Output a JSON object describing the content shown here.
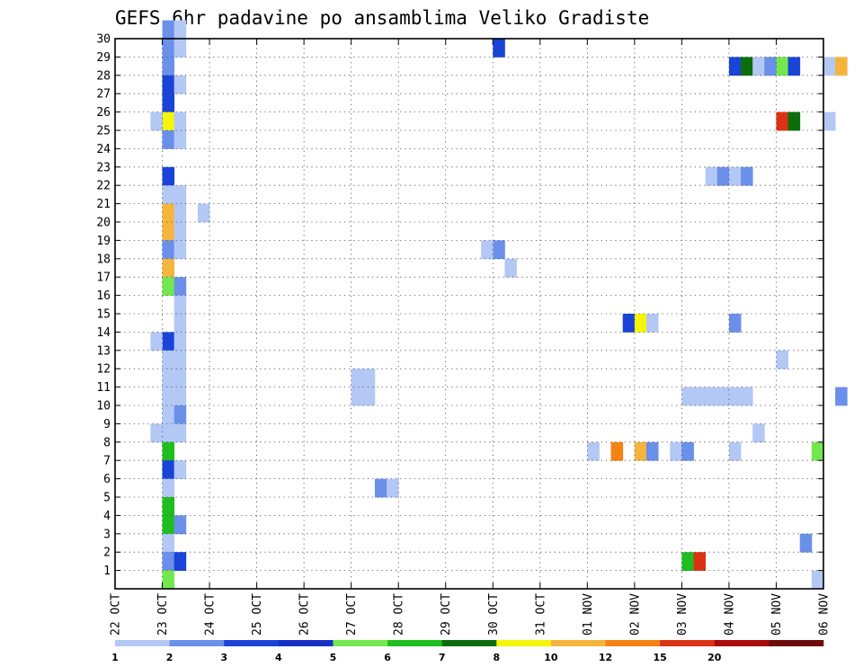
{
  "chart_data": {
    "type": "heatmap",
    "title": "GEFS 6hr padavine po ansamblima Veliko Gradiste",
    "xlabel": "",
    "ylabel": "",
    "x_ticks": [
      "22 OCT",
      "23 OCT",
      "24 OCT",
      "25 OCT",
      "26 OCT",
      "27 OCT",
      "28 OCT",
      "29 OCT",
      "30 OCT",
      "31 OCT",
      "01 NOV",
      "02 NOV",
      "03 NOV",
      "04 NOV",
      "05 NOV",
      "06 NOV"
    ],
    "xlim_days": [
      0,
      15
    ],
    "y_ticks": [
      "1",
      "2",
      "3",
      "4",
      "5",
      "6",
      "7",
      "8",
      "9",
      "10",
      "11",
      "12",
      "13",
      "14",
      "15",
      "16",
      "17",
      "18",
      "19",
      "20",
      "21",
      "22",
      "23",
      "24",
      "25",
      "26",
      "27",
      "28",
      "29",
      "30"
    ],
    "ylim": [
      0,
      30
    ],
    "grid": true,
    "colorbar": {
      "levels": [
        "1",
        "2",
        "3",
        "4",
        "5",
        "6",
        "7",
        "8",
        "10",
        "12",
        "15",
        "20"
      ],
      "colors": [
        "#b4c8f5",
        "#6a90ea",
        "#1a44d8",
        "#1730c8",
        "#73e84e",
        "#1fbe1f",
        "#0b6e0b",
        "#f5f50a",
        "#f5b43c",
        "#f58214",
        "#dc3214",
        "#aa0a0a",
        "#6e0a0a"
      ]
    },
    "cells": [
      [
        1,
        0,
        30,
        1
      ],
      [
        1,
        1,
        30,
        0
      ],
      [
        1,
        0,
        29,
        1
      ],
      [
        1,
        1,
        29,
        0
      ],
      [
        1,
        0,
        28,
        1
      ],
      [
        1,
        0,
        27,
        2
      ],
      [
        1,
        1,
        27,
        0
      ],
      [
        1,
        0,
        26,
        2
      ],
      [
        1,
        0,
        25,
        7
      ],
      [
        1,
        1,
        25,
        0
      ],
      [
        0,
        3,
        25,
        0
      ],
      [
        1,
        0,
        24,
        1
      ],
      [
        1,
        1,
        24,
        0
      ],
      [
        1,
        0,
        22,
        2
      ],
      [
        1,
        0,
        21,
        0
      ],
      [
        1,
        1,
        21,
        0
      ],
      [
        1,
        0,
        20,
        8
      ],
      [
        1,
        1,
        20,
        0
      ],
      [
        0,
        7,
        20,
        0
      ],
      [
        1,
        0,
        19,
        8
      ],
      [
        1,
        1,
        19,
        0
      ],
      [
        1,
        0,
        18,
        1
      ],
      [
        1,
        1,
        18,
        0
      ],
      [
        1,
        0,
        17,
        8
      ],
      [
        1,
        0,
        16,
        4
      ],
      [
        1,
        1,
        16,
        1
      ],
      [
        1,
        1,
        15,
        0
      ],
      [
        1,
        1,
        14,
        0
      ],
      [
        1,
        0,
        13,
        2
      ],
      [
        1,
        1,
        13,
        0
      ],
      [
        0,
        3,
        13,
        0
      ],
      [
        1,
        0,
        12,
        0
      ],
      [
        1,
        1,
        12,
        0
      ],
      [
        1,
        0,
        11,
        0
      ],
      [
        1,
        1,
        11,
        0
      ],
      [
        1,
        0,
        10,
        0
      ],
      [
        1,
        1,
        10,
        0
      ],
      [
        1,
        0,
        9,
        0
      ],
      [
        1,
        1,
        9,
        1
      ],
      [
        1,
        0,
        8,
        0
      ],
      [
        1,
        1,
        8,
        0
      ],
      [
        0,
        3,
        8,
        0
      ],
      [
        1,
        0,
        7,
        5
      ],
      [
        1,
        0,
        6,
        2
      ],
      [
        1,
        1,
        6,
        0
      ],
      [
        1,
        0,
        5,
        0
      ],
      [
        1,
        0,
        4,
        5
      ],
      [
        1,
        0,
        3,
        5
      ],
      [
        1,
        1,
        3,
        1
      ],
      [
        1,
        0,
        2,
        0
      ],
      [
        1,
        0,
        1,
        1
      ],
      [
        1,
        1,
        1,
        2
      ],
      [
        1,
        0,
        0,
        4
      ],
      [
        8,
        0,
        29,
        2
      ],
      [
        8,
        0,
        18,
        1
      ],
      [
        7,
        3,
        18,
        0
      ],
      [
        8,
        1,
        17,
        0
      ],
      [
        5,
        0,
        11,
        0
      ],
      [
        5,
        1,
        11,
        0
      ],
      [
        5,
        0,
        10,
        0
      ],
      [
        5,
        1,
        10,
        0
      ],
      [
        5,
        2,
        5,
        1
      ],
      [
        5,
        3,
        5,
        0
      ],
      [
        10,
        3,
        14,
        2
      ],
      [
        11,
        0,
        14,
        7
      ],
      [
        11,
        1,
        14,
        0
      ],
      [
        10,
        0,
        7,
        0
      ],
      [
        10,
        2,
        7,
        9
      ],
      [
        11,
        0,
        7,
        8
      ],
      [
        11,
        1,
        7,
        1
      ],
      [
        11,
        3,
        7,
        0
      ],
      [
        12,
        0,
        7,
        1
      ],
      [
        12,
        2,
        22,
        0
      ],
      [
        12,
        3,
        22,
        1
      ],
      [
        13,
        0,
        22,
        0
      ],
      [
        13,
        1,
        22,
        1
      ],
      [
        13,
        0,
        28,
        2
      ],
      [
        13,
        1,
        28,
        6
      ],
      [
        13,
        2,
        28,
        0
      ],
      [
        13,
        3,
        28,
        1
      ],
      [
        14,
        0,
        28,
        4
      ],
      [
        14,
        1,
        28,
        2
      ],
      [
        15,
        0,
        28,
        0
      ],
      [
        15,
        1,
        28,
        8
      ],
      [
        14,
        0,
        25,
        10
      ],
      [
        14,
        1,
        25,
        6
      ],
      [
        15,
        0,
        25,
        0
      ],
      [
        13,
        0,
        14,
        1
      ],
      [
        14,
        0,
        12,
        0
      ],
      [
        15,
        1,
        10,
        1
      ],
      [
        12,
        0,
        10,
        0
      ],
      [
        12,
        1,
        10,
        0
      ],
      [
        12,
        2,
        10,
        0
      ],
      [
        12,
        3,
        10,
        0
      ],
      [
        13,
        0,
        10,
        0
      ],
      [
        13,
        1,
        10,
        0
      ],
      [
        13,
        2,
        8,
        0
      ],
      [
        13,
        0,
        7,
        0
      ],
      [
        14,
        3,
        7,
        4
      ],
      [
        14,
        2,
        2,
        1
      ],
      [
        14,
        3,
        0,
        0
      ],
      [
        12,
        0,
        1,
        5
      ],
      [
        12,
        1,
        1,
        10
      ]
    ]
  }
}
